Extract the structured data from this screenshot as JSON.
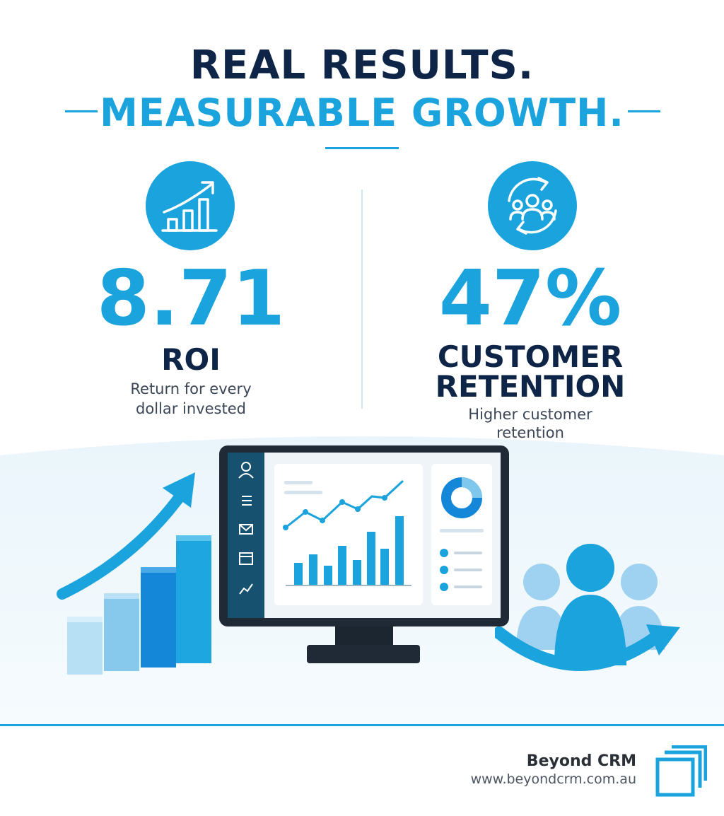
{
  "headline": {
    "line1": "REAL RESULTS.",
    "line2": "MEASURABLE GROWTH."
  },
  "stats": [
    {
      "value": "8.71",
      "label": "ROI",
      "description_line1": "Return for every",
      "description_line2": "dollar invested",
      "icon": "growth-chart-icon"
    },
    {
      "value": "47%",
      "label_line1": "CUSTOMER",
      "label_line2": "RETENTION",
      "description_line1": "Higher customer",
      "description_line2": "retention",
      "icon": "customer-retention-icon"
    }
  ],
  "footer": {
    "brand": "Beyond CRM",
    "url": "www.beyondcrm.com.au"
  },
  "colors": {
    "accent": "#1aa3dc",
    "navy": "#0e2548",
    "light_blue": "#a9dcf2",
    "monitor": "#1f2a36"
  }
}
